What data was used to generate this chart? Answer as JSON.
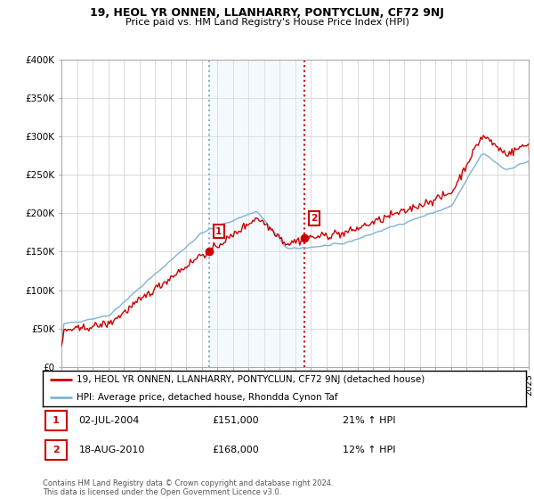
{
  "title": "19, HEOL YR ONNEN, LLANHARRY, PONTYCLUN, CF72 9NJ",
  "subtitle": "Price paid vs. HM Land Registry's House Price Index (HPI)",
  "legend_line1": "19, HEOL YR ONNEN, LLANHARRY, PONTYCLUN, CF72 9NJ (detached house)",
  "legend_line2": "HPI: Average price, detached house, Rhondda Cynon Taf",
  "annotation1_date": "02-JUL-2004",
  "annotation1_price": "£151,000",
  "annotation1_hpi": "21% ↑ HPI",
  "annotation2_date": "18-AUG-2010",
  "annotation2_price": "£168,000",
  "annotation2_hpi": "12% ↑ HPI",
  "footer": "Contains HM Land Registry data © Crown copyright and database right 2024.\nThis data is licensed under the Open Government Licence v3.0.",
  "red_color": "#cc0000",
  "blue_color": "#7fb3d3",
  "vline1_color": "#7fb3d3",
  "vline2_color": "#cc0000",
  "shaded_color": "#ddeeff",
  "ylim": [
    0,
    400000
  ],
  "yticks": [
    0,
    50000,
    100000,
    150000,
    200000,
    250000,
    300000,
    350000,
    400000
  ],
  "ytick_labels": [
    "£0",
    "£50K",
    "£100K",
    "£150K",
    "£200K",
    "£250K",
    "£300K",
    "£350K",
    "£400K"
  ],
  "sale1_year": 2004.5,
  "sale1_price": 151000,
  "sale2_year": 2010.625,
  "sale2_price": 168000,
  "xmin": 1995,
  "xmax": 2025
}
